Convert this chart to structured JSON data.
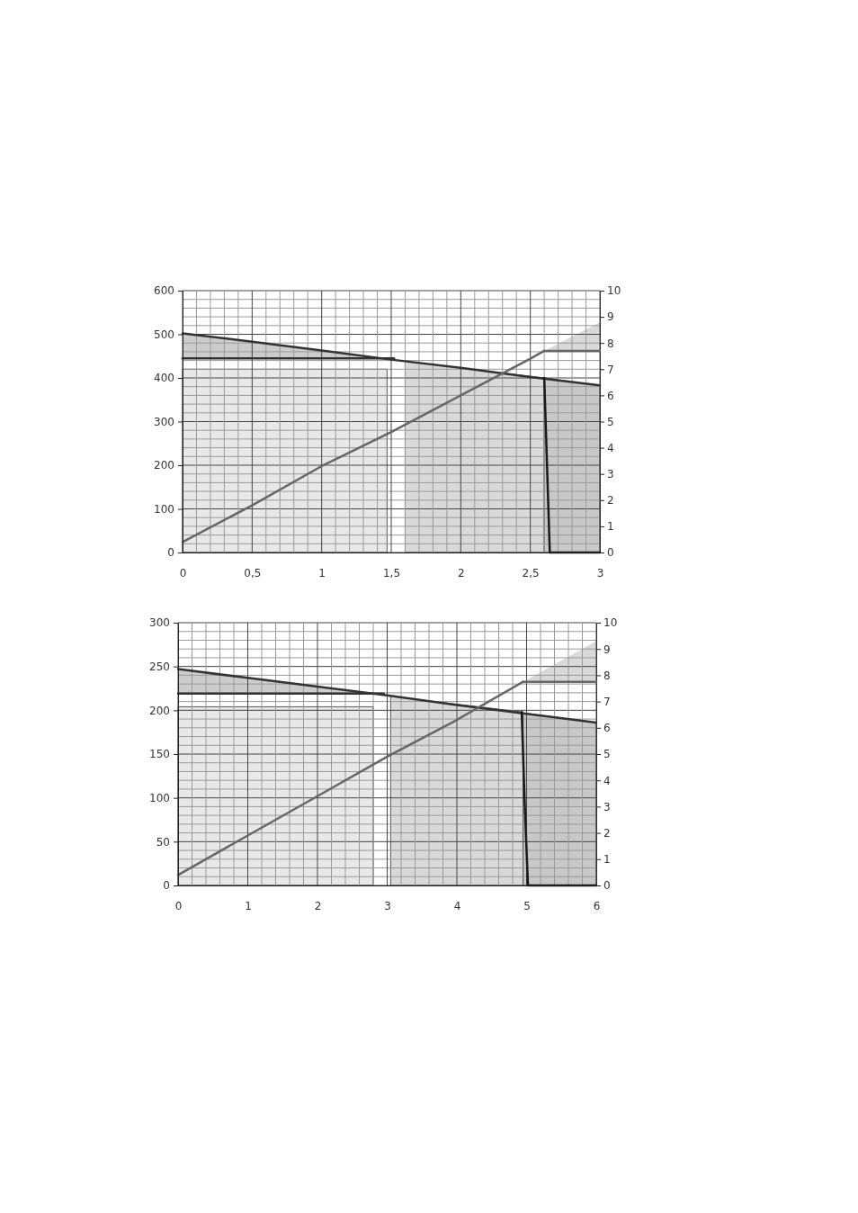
{
  "chart_data": [
    {
      "type": "area",
      "xlim": [
        0,
        3
      ],
      "ylim": [
        0,
        600
      ],
      "y2lim": [
        0,
        10
      ],
      "grid": true,
      "xticks": [
        0,
        {
          "value": 0.1,
          "label": null
        },
        {
          "value": 0.2,
          "label": null
        },
        {
          "value": 0.3,
          "label": null
        },
        {
          "value": 0.4,
          "label": null
        },
        {
          "value": 0.5,
          "label": "0,5"
        },
        {
          "value": 0.6,
          "label": null
        },
        {
          "value": 0.7,
          "label": null
        },
        {
          "value": 0.8,
          "label": null
        },
        {
          "value": 0.9,
          "label": null
        },
        1,
        {
          "value": 1.1,
          "label": null
        },
        {
          "value": 1.2,
          "label": null
        },
        {
          "value": 1.3,
          "label": null
        },
        {
          "value": 1.4,
          "label": null
        },
        {
          "value": 1.5,
          "label": "1,5"
        },
        {
          "value": 1.6,
          "label": null
        },
        {
          "value": 1.7,
          "label": null
        },
        {
          "value": 1.8,
          "label": null
        },
        {
          "value": 1.9,
          "label": null
        },
        2,
        {
          "value": 2.1,
          "label": null
        },
        {
          "value": 2.2,
          "label": null
        },
        {
          "value": 2.3,
          "label": null
        },
        {
          "value": 2.4,
          "label": null
        },
        {
          "value": 2.5,
          "label": "2,5"
        },
        {
          "value": 2.6,
          "label": null
        },
        {
          "value": 2.7,
          "label": null
        },
        {
          "value": 2.8,
          "label": null
        },
        {
          "value": 2.9,
          "label": null
        },
        3
      ],
      "yticks": [
        0,
        {
          "value": 20,
          "label": null
        },
        {
          "value": 40,
          "label": null
        },
        {
          "value": 60,
          "label": null
        },
        {
          "value": 80,
          "label": null
        },
        100,
        {
          "value": 120,
          "label": null
        },
        {
          "value": 140,
          "label": null
        },
        {
          "value": 160,
          "label": null
        },
        {
          "value": 180,
          "label": null
        },
        200,
        {
          "value": 220,
          "label": null
        },
        {
          "value": 240,
          "label": null
        },
        {
          "value": 260,
          "label": null
        },
        {
          "value": 280,
          "label": null
        },
        300,
        {
          "value": 320,
          "label": null
        },
        {
          "value": 340,
          "label": null
        },
        {
          "value": 360,
          "label": null
        },
        {
          "value": 380,
          "label": null
        },
        400,
        {
          "value": 420,
          "label": null
        },
        {
          "value": 440,
          "label": null
        },
        {
          "value": 460,
          "label": null
        },
        {
          "value": 480,
          "label": null
        },
        500,
        {
          "value": 520,
          "label": null
        },
        {
          "value": 540,
          "label": null
        },
        {
          "value": 560,
          "label": null
        },
        {
          "value": 580,
          "label": null
        },
        600
      ],
      "y2ticks": [
        0,
        1,
        2,
        3,
        4,
        5,
        6,
        7,
        8,
        9,
        10
      ],
      "series": [
        {
          "color": "#e8e8e8",
          "x": [
            0,
            1.47
          ],
          "values": [
            420,
            420
          ]
        },
        {
          "color": "#d9d9d9",
          "x": [
            1.6,
            2.6
          ],
          "values": [
            438,
            400
          ]
        },
        {
          "color": "#c8c8c8",
          "x": [
            2.6,
            3
          ],
          "values": [
            400,
            383
          ]
        },
        {
          "type": "line",
          "color": "#333333",
          "x": [
            0,
            1.52
          ],
          "values": [
            445,
            445
          ],
          "lower": [
            445,
            445
          ],
          "upper": [
            502,
            441
          ]
        },
        {
          "type": "line",
          "color": "#333333",
          "x": [
            0,
            0.5,
            1,
            1.5,
            2,
            2.5,
            3
          ],
          "values": [
            502,
            483,
            463,
            442,
            423,
            402,
            383
          ]
        },
        {
          "type": "line",
          "color": "#1a1a1a",
          "x": [
            2.6,
            2.62,
            2.64
          ],
          "values": [
            400,
            200,
            0
          ]
        },
        {
          "type": "line",
          "color": "#1a1a1a",
          "x": [
            2.64,
            3
          ],
          "values": [
            0,
            0
          ]
        },
        {
          "type": "line",
          "color": "#666666",
          "axis": "y2",
          "x": [
            0,
            0.5,
            1,
            1.5,
            2,
            2.5,
            2.6
          ],
          "values": [
            0.4,
            1.8,
            3.3,
            4.6,
            6,
            7.4,
            7.7
          ]
        },
        {
          "type": "line",
          "color": "#666666",
          "axis": "y2",
          "x": [
            2.6,
            3
          ],
          "values": [
            7.7,
            7.7
          ],
          "lower": [
            7.7,
            7.7
          ],
          "upper": [
            7.7,
            8.8
          ]
        }
      ]
    },
    {
      "type": "area",
      "xlim": [
        0,
        6
      ],
      "ylim": [
        0,
        300
      ],
      "y2lim": [
        0,
        10
      ],
      "grid": true,
      "xticks": [
        0,
        {
          "value": 0.2,
          "label": null
        },
        {
          "value": 0.4,
          "label": null
        },
        {
          "value": 0.6,
          "label": null
        },
        {
          "value": 0.8,
          "label": null
        },
        1,
        {
          "value": 1.2,
          "label": null
        },
        {
          "value": 1.4,
          "label": null
        },
        {
          "value": 1.6,
          "label": null
        },
        {
          "value": 1.8,
          "label": null
        },
        2,
        {
          "value": 2.2,
          "label": null
        },
        {
          "value": 2.4,
          "label": null
        },
        {
          "value": 2.6,
          "label": null
        },
        {
          "value": 2.8,
          "label": null
        },
        3,
        {
          "value": 3.2,
          "label": null
        },
        {
          "value": 3.4,
          "label": null
        },
        {
          "value": 3.6,
          "label": null
        },
        {
          "value": 3.8,
          "label": null
        },
        4,
        {
          "value": 4.2,
          "label": null
        },
        {
          "value": 4.4,
          "label": null
        },
        {
          "value": 4.6,
          "label": null
        },
        {
          "value": 4.8,
          "label": null
        },
        5,
        {
          "value": 5.2,
          "label": null
        },
        {
          "value": 5.4,
          "label": null
        },
        {
          "value": 5.6,
          "label": null
        },
        {
          "value": 5.8,
          "label": null
        },
        6
      ],
      "yticks": [
        0,
        {
          "value": 10,
          "label": null
        },
        {
          "value": 20,
          "label": null
        },
        {
          "value": 30,
          "label": null
        },
        {
          "value": 40,
          "label": null
        },
        50,
        {
          "value": 60,
          "label": null
        },
        {
          "value": 70,
          "label": null
        },
        {
          "value": 80,
          "label": null
        },
        {
          "value": 90,
          "label": null
        },
        100,
        {
          "value": 110,
          "label": null
        },
        {
          "value": 120,
          "label": null
        },
        {
          "value": 130,
          "label": null
        },
        {
          "value": 140,
          "label": null
        },
        150,
        {
          "value": 160,
          "label": null
        },
        {
          "value": 170,
          "label": null
        },
        {
          "value": 180,
          "label": null
        },
        {
          "value": 190,
          "label": null
        },
        200,
        {
          "value": 210,
          "label": null
        },
        {
          "value": 220,
          "label": null
        },
        {
          "value": 230,
          "label": null
        },
        {
          "value": 240,
          "label": null
        },
        250,
        {
          "value": 260,
          "label": null
        },
        {
          "value": 270,
          "label": null
        },
        {
          "value": 280,
          "label": null
        },
        {
          "value": 290,
          "label": null
        },
        300
      ],
      "y2ticks": [
        0,
        1,
        2,
        3,
        4,
        5,
        6,
        7,
        8,
        9,
        10
      ],
      "series": [
        {
          "color": "#e8e8e8",
          "x": [
            0,
            2.8
          ],
          "values": [
            204,
            204
          ]
        },
        {
          "color": "#d9d9d9",
          "x": [
            3.05,
            4.95
          ],
          "values": [
            216,
            198
          ]
        },
        {
          "color": "#c8c8c8",
          "x": [
            4.95,
            6
          ],
          "values": [
            197,
            186
          ]
        },
        {
          "type": "line",
          "color": "#333333",
          "x": [
            0,
            2.95
          ],
          "values": [
            219,
            219
          ],
          "lower": [
            219,
            219
          ],
          "upper": [
            247,
            218
          ]
        },
        {
          "type": "line",
          "color": "#333333",
          "x": [
            0,
            1,
            2,
            3,
            4,
            5,
            6
          ],
          "values": [
            247,
            237,
            227,
            217,
            206,
            196,
            186
          ]
        },
        {
          "type": "line",
          "color": "#1a1a1a",
          "x": [
            4.93,
            4.97,
            5.02,
            6
          ],
          "values": [
            198,
            100,
            0,
            0
          ]
        },
        {
          "type": "line",
          "color": "#666666",
          "axis": "y2",
          "x": [
            0,
            1,
            2,
            3,
            4,
            4.95
          ],
          "values": [
            0.4,
            1.9,
            3.4,
            4.9,
            6.3,
            7.75
          ]
        },
        {
          "type": "line",
          "color": "#666666",
          "axis": "y2",
          "x": [
            4.95,
            6
          ],
          "values": [
            7.75,
            7.75
          ],
          "lower": [
            7.75,
            7.75
          ],
          "upper": [
            7.75,
            9.3
          ]
        }
      ]
    }
  ]
}
